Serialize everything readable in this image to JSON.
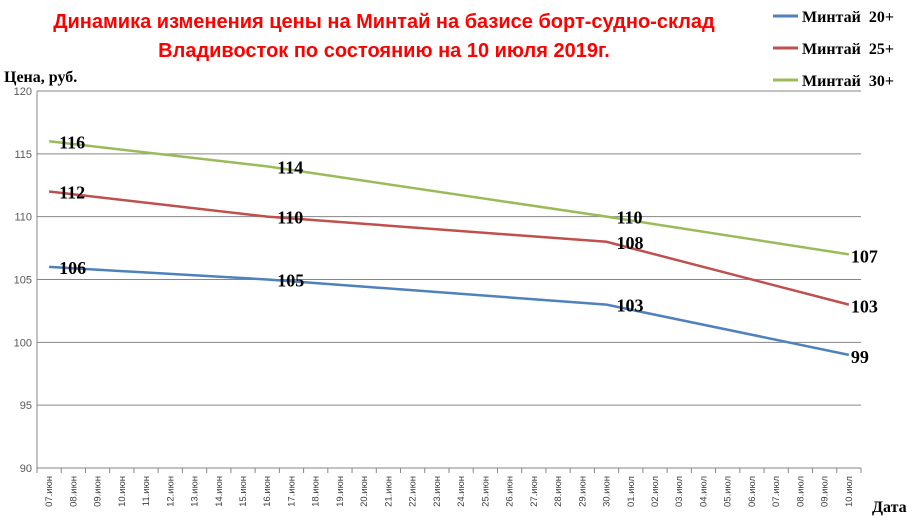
{
  "chart_data": {
    "type": "line",
    "title_line1": "Динамика изменения цены на Минтай на базисе борт-судно-склад",
    "title_line2": "Владивосток по состоянию на 10 июля 2019г.",
    "ylabel": "Цена, руб.",
    "xlabel": "Дата",
    "ylim": [
      90,
      120
    ],
    "yticks": [
      "90",
      "95",
      "100",
      "105",
      "110",
      "115",
      "120"
    ],
    "grid": true,
    "legend_position": "top-right",
    "categories": [
      "07.июн",
      "08.июн",
      "09.июн",
      "10.июн",
      "11.июн",
      "12.июн",
      "13.июн",
      "14.июн",
      "15.июн",
      "16.июн",
      "17.июн",
      "18.июн",
      "19.июн",
      "20.июн",
      "21.июн",
      "22.июн",
      "23.июн",
      "24.июн",
      "25.июн",
      "26.июн",
      "27.июн",
      "28.июн",
      "29.июн",
      "30.июн",
      "01.июл",
      "02.июл",
      "03.июл",
      "04.июл",
      "05.июл",
      "06.июл",
      "07.июл",
      "08.июл",
      "09.июл",
      "10.июл"
    ],
    "series": [
      {
        "name": "Минтай  20+",
        "color": "#4f81bd",
        "points": [
          {
            "x": "07.июн",
            "y": 106,
            "label": "106"
          },
          {
            "x": "16.июн",
            "y": 105,
            "label": "105"
          },
          {
            "x": "30.июн",
            "y": 103,
            "label": "103"
          },
          {
            "x": "10.июл",
            "y": 99,
            "label": "99"
          }
        ]
      },
      {
        "name": "Минтай  25+",
        "color": "#c0504d",
        "points": [
          {
            "x": "07.июн",
            "y": 112,
            "label": "112"
          },
          {
            "x": "16.июн",
            "y": 110,
            "label": "110"
          },
          {
            "x": "30.июн",
            "y": 108,
            "label": "108"
          },
          {
            "x": "10.июл",
            "y": 103,
            "label": "103"
          }
        ]
      },
      {
        "name": "Минтай  30+",
        "color": "#9bbb59",
        "points": [
          {
            "x": "07.июн",
            "y": 116,
            "label": "116"
          },
          {
            "x": "16.июн",
            "y": 114,
            "label": "114"
          },
          {
            "x": "30.июн",
            "y": 110,
            "label": "110"
          },
          {
            "x": "10.июл",
            "y": 107,
            "label": "107"
          }
        ]
      }
    ]
  }
}
